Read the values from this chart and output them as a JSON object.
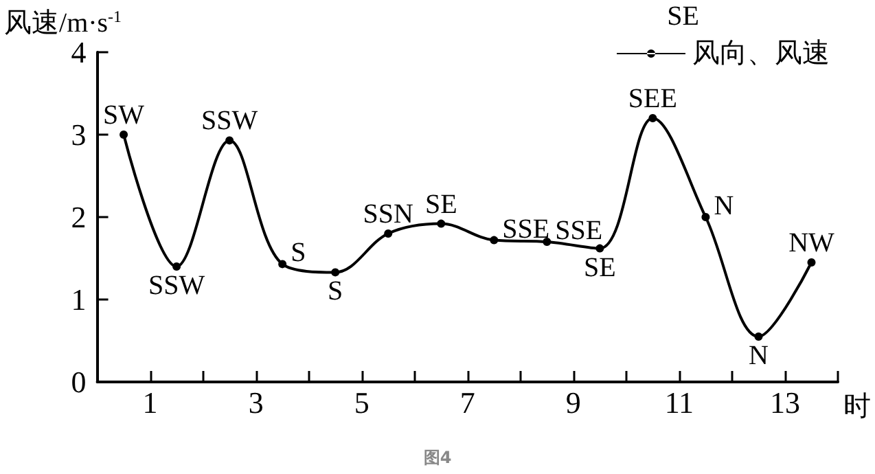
{
  "chart_data": {
    "type": "line",
    "ylabel": "风速/m·s$^{-1}$",
    "xlabel": "时",
    "legend_title": "SE",
    "legend": "top right",
    "marker": "circle",
    "line_style": "solid",
    "grid": false,
    "x": [
      0.5,
      1.5,
      2.5,
      3.5,
      4.5,
      5.5,
      6.5,
      7.5,
      8.5,
      9.5,
      10.5,
      11.5,
      12.5,
      13.5
    ],
    "series": [
      {
        "name": "风向、风速",
        "color": "#000000",
        "values": [
          3.0,
          1.4,
          2.93,
          1.43,
          1.33,
          1.8,
          1.92,
          1.72,
          1.7,
          1.62,
          3.2,
          2.0,
          0.55,
          1.45
        ]
      }
    ],
    "xlim": [
      0,
      14
    ],
    "xticks": [
      {
        "value": 0,
        "label": null
      },
      1,
      {
        "value": 2,
        "label": null
      },
      3,
      {
        "value": 4,
        "label": null
      },
      5,
      {
        "value": 6,
        "label": null
      },
      7,
      {
        "value": 8,
        "label": null
      },
      9,
      {
        "value": 10,
        "label": null
      },
      11,
      {
        "value": 12,
        "label": null
      },
      13,
      {
        "value": 14,
        "label": null
      }
    ],
    "ylim": [
      0,
      4
    ],
    "yticks": [
      0,
      1,
      2,
      3,
      4
    ],
    "annotations": [
      {
        "text": "SW",
        "x": 0.5,
        "y": 3.0
      },
      {
        "text": "SSW",
        "x": 1.5,
        "y": 1.4
      },
      {
        "text": "SSW",
        "x": 2.5,
        "y": 2.93
      },
      {
        "text": "S",
        "x": 3.5,
        "y": 1.43
      },
      {
        "text": "S",
        "x": 4.5,
        "y": 1.33
      },
      {
        "text": "SSN",
        "x": 5.5,
        "y": 1.8
      },
      {
        "text": "SE",
        "x": 6.5,
        "y": 1.92
      },
      {
        "text": "SSE",
        "x": 7.5,
        "y": 1.72
      },
      {
        "text": "SSE",
        "x": 8.5,
        "y": 1.7
      },
      {
        "text": "SE",
        "x": 9.5,
        "y": 1.62
      },
      {
        "text": "SEE",
        "x": 10.5,
        "y": 3.2
      },
      {
        "text": "N",
        "x": 11.5,
        "y": 2.0
      },
      {
        "text": "N",
        "x": 12.5,
        "y": 0.55
      },
      {
        "text": "NW",
        "x": 13.5,
        "y": 1.45
      },
      "图4"
    ]
  }
}
